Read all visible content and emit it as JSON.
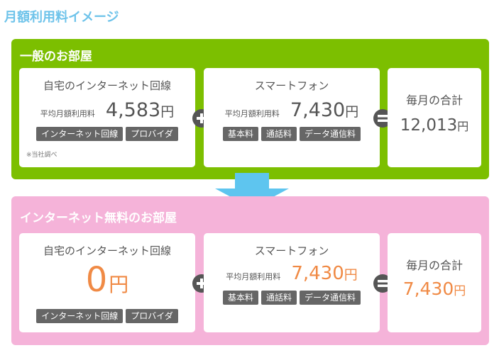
{
  "page_title": "月額利用料イメージ",
  "sections": [
    {
      "title": "一般のお部屋",
      "home_internet": {
        "title": "自宅のインターネット回線",
        "avg_label": "平均月額利用料",
        "amount": "4,583",
        "yen": "円",
        "tags": [
          "インターネット回線",
          "プロバイダ"
        ],
        "note": "※当社調べ"
      },
      "smartphone": {
        "title": "スマートフォン",
        "avg_label": "平均月額利用料",
        "amount": "7,430",
        "yen": "円",
        "tags": [
          "基本料",
          "通話料",
          "データ通信料"
        ]
      },
      "total": {
        "title": "毎月の合計",
        "amount": "12,013",
        "yen": "円"
      }
    },
    {
      "title": "インターネット無料のお部屋",
      "home_internet": {
        "title": "自宅のインターネット回線",
        "amount": "0",
        "yen": "円",
        "tags": [
          "インターネット回線",
          "プロバイダ"
        ]
      },
      "smartphone": {
        "title": "スマートフォン",
        "avg_label": "平均月額利用料",
        "amount": "7,430",
        "yen": "円",
        "tags": [
          "基本料",
          "通話料",
          "データ通信料"
        ]
      },
      "total": {
        "title": "毎月の合計",
        "amount": "7,430",
        "yen": "円"
      }
    }
  ],
  "colors": {
    "title_blue": "#6ec3ea",
    "green": "#7cbf00",
    "pink": "#f5b3d9",
    "arrow_blue": "#5ec5ef",
    "orange": "#f08a45",
    "tag_gray": "#666666"
  },
  "icons": [
    "plus-icon",
    "equals-icon",
    "down-arrow-icon"
  ]
}
